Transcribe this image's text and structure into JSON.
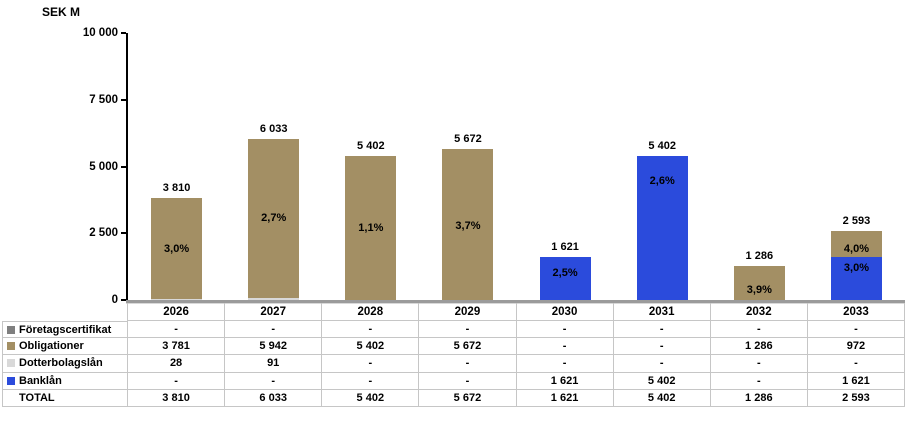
{
  "chart_data": {
    "type": "bar",
    "stacked": true,
    "title": "",
    "ylabel": "SEK M",
    "xlabel": "",
    "ylim": [
      0,
      10000
    ],
    "grid": false,
    "ytick_values": [
      0,
      2500,
      5000,
      7500,
      10000
    ],
    "ytick_labels": [
      "0",
      "2 500",
      "5 000",
      "7 500",
      "10 000"
    ],
    "categories": [
      "2026",
      "2027",
      "2028",
      "2029",
      "2030",
      "2031",
      "2032",
      "2033"
    ],
    "series": [
      {
        "name": "Företagscertifikat",
        "color": "#7f7f7f",
        "values": [
          0,
          0,
          0,
          0,
          0,
          0,
          0,
          0
        ]
      },
      {
        "name": "Obligationer",
        "color": "#a38f64",
        "values": [
          3781,
          5942,
          5402,
          5672,
          0,
          0,
          1286,
          972
        ]
      },
      {
        "name": "Dotterbolagslån",
        "color": "#d9d9d9",
        "values": [
          28,
          91,
          0,
          0,
          0,
          0,
          0,
          0
        ]
      },
      {
        "name": "Banklån",
        "color": "#2b4bdc",
        "values": [
          0,
          0,
          0,
          0,
          1621,
          5402,
          0,
          1621
        ]
      }
    ],
    "stack_order": [
      "Banklån",
      "Dotterbolagslån",
      "Obligationer",
      "Företagscertifikat"
    ],
    "totals": [
      3810,
      6033,
      5402,
      5672,
      1621,
      5402,
      1286,
      2593
    ],
    "total_labels": [
      "3 810",
      "6 033",
      "5 402",
      "5 672",
      "1 621",
      "5 402",
      "1 286",
      "2 593"
    ],
    "pct_labels": [
      {
        "category": "2026",
        "series": "Obligationer",
        "text": "3,0%",
        "dy": 0
      },
      {
        "category": "2027",
        "series": "Obligationer",
        "text": "2,7%",
        "dy": 0
      },
      {
        "category": "2028",
        "series": "Obligationer",
        "text": "1,1%",
        "dy": 0
      },
      {
        "category": "2029",
        "series": "Obligationer",
        "text": "3,7%",
        "dy": 2
      },
      {
        "category": "2030",
        "series": "Banklån",
        "text": "2,5%",
        "dy": -5
      },
      {
        "category": "2031",
        "series": "Banklån",
        "text": "2,6%",
        "dy": -47
      },
      {
        "category": "2032",
        "series": "Obligationer",
        "text": "3,9%",
        "dy": 7
      },
      {
        "category": "2033",
        "series": "Obligationer",
        "text": "4,0%",
        "dy": 5
      },
      {
        "category": "2033",
        "series": "Banklån",
        "text": "3,0%",
        "dy": -10
      }
    ],
    "legend_position": "table-left"
  },
  "table": {
    "columns": [
      "2026",
      "2027",
      "2028",
      "2029",
      "2030",
      "2031",
      "2032",
      "2033"
    ],
    "rows": [
      {
        "label": "Företagscertifikat",
        "swatch": "#7f7f7f",
        "values": [
          "-",
          "-",
          "-",
          "-",
          "-",
          "-",
          "-",
          "-"
        ]
      },
      {
        "label": "Obligationer",
        "swatch": "#a38f64",
        "values": [
          "3 781",
          "5 942",
          "5 402",
          "5 672",
          "-",
          "-",
          "1 286",
          "972"
        ]
      },
      {
        "label": "Dotterbolagslån",
        "swatch": "#d9d9d9",
        "values": [
          "28",
          "91",
          "-",
          "-",
          "-",
          "-",
          "-",
          "-"
        ]
      },
      {
        "label": "Banklån",
        "swatch": "#2b4bdc",
        "values": [
          "-",
          "-",
          "-",
          "-",
          "1 621",
          "5 402",
          "-",
          "1 621"
        ]
      },
      {
        "label": "TOTAL",
        "swatch": null,
        "values": [
          "3 810",
          "6 033",
          "5 402",
          "5 672",
          "1 621",
          "5 402",
          "1 286",
          "2 593"
        ]
      }
    ]
  },
  "colors": {
    "obligationer": "#a38f64",
    "banklan": "#2b4bdc",
    "foretagscertifikat": "#7f7f7f",
    "dotterbolagslan": "#d9d9d9",
    "axis": "#000000",
    "baseline": "#9b9b9b",
    "table_border": "#c6c6c6"
  }
}
